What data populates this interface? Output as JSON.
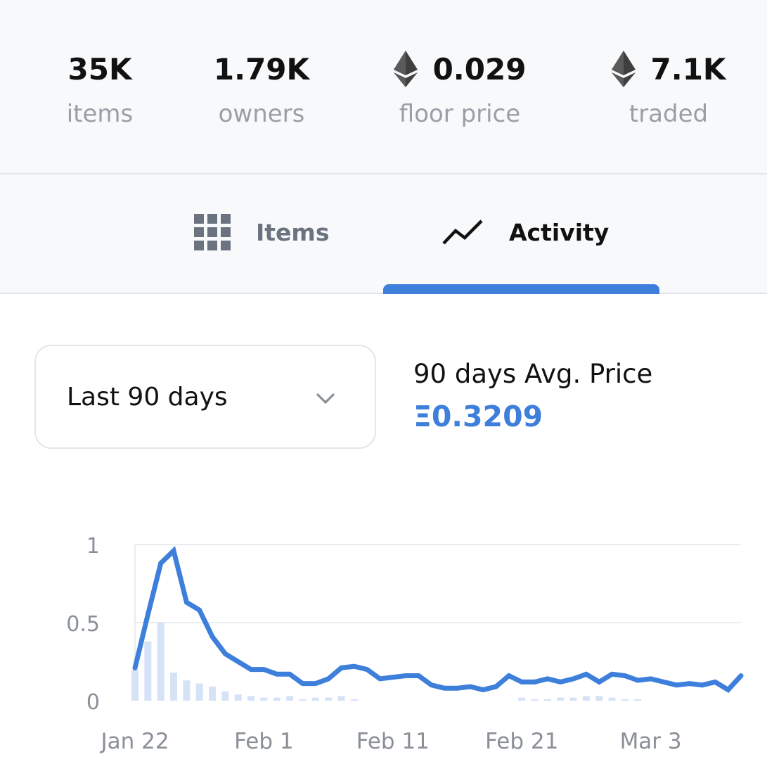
{
  "stats": [
    {
      "value": "35K",
      "label": "items",
      "eth": false
    },
    {
      "value": "1.79K",
      "label": "owners",
      "eth": false
    },
    {
      "value": "0.029",
      "label": "floor price",
      "eth": true
    },
    {
      "value": "7.1K",
      "label": "traded",
      "eth": true
    }
  ],
  "tabs": {
    "items_label": "Items",
    "activity_label": "Activity",
    "active": "Activity"
  },
  "range": {
    "selected": "Last 90 days"
  },
  "avg": {
    "title": "90 days Avg. Price",
    "value": "Ξ0.3209"
  },
  "colors": {
    "accent": "#3d7fdb",
    "volume_bars": "#d6e3f7"
  },
  "chart_data": {
    "type": "line",
    "title": "",
    "xlabel": "",
    "ylabel": "",
    "ylim": [
      0,
      1
    ],
    "yticks": [
      "0",
      "0.5",
      "1"
    ],
    "xticks": [
      {
        "label": "Jan 22",
        "date": "2022-01-22"
      },
      {
        "label": "Feb 1",
        "date": "2022-02-01"
      },
      {
        "label": "Feb 11",
        "date": "2022-02-11"
      },
      {
        "label": "Feb 21",
        "date": "2022-02-21"
      },
      {
        "label": "Mar 3",
        "date": "2022-03-03"
      }
    ],
    "grid": true,
    "series": [
      {
        "kind": "line",
        "x": [
          "2022-01-22",
          "2022-01-23",
          "2022-01-24",
          "2022-01-25",
          "2022-01-26",
          "2022-01-27",
          "2022-01-28",
          "2022-01-29",
          "2022-01-30",
          "2022-01-31",
          "2022-02-01",
          "2022-02-02",
          "2022-02-03",
          "2022-02-04",
          "2022-02-05",
          "2022-02-06",
          "2022-02-07",
          "2022-02-08",
          "2022-02-09",
          "2022-02-10",
          "2022-02-11",
          "2022-02-12",
          "2022-02-13",
          "2022-02-14",
          "2022-02-15",
          "2022-02-16",
          "2022-02-17",
          "2022-02-18",
          "2022-02-19",
          "2022-02-20",
          "2022-02-21",
          "2022-02-22",
          "2022-02-23",
          "2022-02-24",
          "2022-02-25",
          "2022-02-26",
          "2022-02-27",
          "2022-02-28",
          "2022-03-01",
          "2022-03-02",
          "2022-03-03",
          "2022-03-04",
          "2022-03-05",
          "2022-03-06",
          "2022-03-07",
          "2022-03-08",
          "2022-03-09",
          "2022-03-10"
        ],
        "y": [
          0.21,
          0.55,
          0.88,
          0.96,
          0.63,
          0.58,
          0.41,
          0.3,
          0.25,
          0.2,
          0.2,
          0.17,
          0.17,
          0.11,
          0.11,
          0.14,
          0.21,
          0.22,
          0.2,
          0.14,
          0.15,
          0.16,
          0.16,
          0.1,
          0.08,
          0.08,
          0.09,
          0.07,
          0.09,
          0.16,
          0.12,
          0.12,
          0.14,
          0.12,
          0.14,
          0.17,
          0.12,
          0.17,
          0.16,
          0.13,
          0.14,
          0.12,
          0.1,
          0.11,
          0.1,
          0.12,
          0.07,
          0.16
        ]
      },
      {
        "kind": "bar",
        "x": [
          "2022-01-22",
          "2022-01-23",
          "2022-01-24",
          "2022-01-25",
          "2022-01-26",
          "2022-01-27",
          "2022-01-28",
          "2022-01-29",
          "2022-01-30",
          "2022-01-31",
          "2022-02-01",
          "2022-02-02",
          "2022-02-03",
          "2022-02-04",
          "2022-02-05",
          "2022-02-06",
          "2022-02-07",
          "2022-02-08",
          "2022-02-09",
          "2022-02-10",
          "2022-02-11",
          "2022-02-12",
          "2022-02-13",
          "2022-02-14",
          "2022-02-15",
          "2022-02-16",
          "2022-02-17",
          "2022-02-18",
          "2022-02-19",
          "2022-02-20",
          "2022-02-21",
          "2022-02-22",
          "2022-02-23",
          "2022-02-24",
          "2022-02-25",
          "2022-02-26",
          "2022-02-27",
          "2022-02-28",
          "2022-03-01",
          "2022-03-02",
          "2022-03-03",
          "2022-03-04",
          "2022-03-05",
          "2022-03-06",
          "2022-03-07",
          "2022-03-08",
          "2022-03-09",
          "2022-03-10"
        ],
        "y": [
          0.2,
          0.38,
          0.5,
          0.18,
          0.13,
          0.11,
          0.09,
          0.06,
          0.04,
          0.03,
          0.02,
          0.02,
          0.03,
          0.01,
          0.02,
          0.02,
          0.03,
          0.01,
          0.0,
          0.0,
          0.0,
          0.0,
          0.0,
          0.0,
          0.0,
          0.0,
          0.0,
          0.0,
          0.0,
          0.0,
          0.02,
          0.01,
          0.01,
          0.02,
          0.02,
          0.03,
          0.03,
          0.02,
          0.01,
          0.01,
          0.0,
          0.0,
          0.0,
          0.0,
          0.0,
          0.0,
          0.0,
          0.0
        ]
      }
    ]
  }
}
